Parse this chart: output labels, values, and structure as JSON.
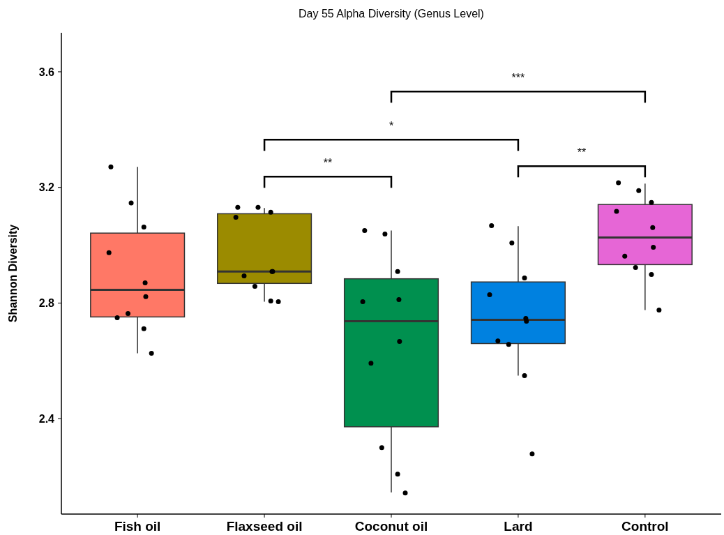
{
  "chart_data": {
    "type": "box",
    "title": "Day 55 Alpha Diversity (Genus Level)",
    "ylabel": "Shannon Diversity",
    "categories": [
      "Fish oil",
      "Flaxseed oil",
      "Coconut oil",
      "Lard",
      "Control"
    ],
    "colors": [
      "#ff7866",
      "#9b8b00",
      "#00904f",
      "#0081e0",
      "#e666d6"
    ],
    "boxes": [
      {
        "low": 2.626,
        "q1": 2.752,
        "median": 2.846,
        "q3": 3.042,
        "high": 3.271
      },
      {
        "low": 2.805,
        "q1": 2.868,
        "median": 2.909,
        "q3": 3.109,
        "high": 3.129
      },
      {
        "low": 2.145,
        "q1": 2.372,
        "median": 2.737,
        "q3": 2.884,
        "high": 3.051
      },
      {
        "low": 2.549,
        "q1": 2.66,
        "median": 2.742,
        "q3": 2.873,
        "high": 3.066
      },
      {
        "low": 2.776,
        "q1": 2.933,
        "median": 3.027,
        "q3": 3.141,
        "high": 3.213
      }
    ],
    "series": [
      {
        "type": "scatter",
        "color": "#000000",
        "x": [
          "Fish oil",
          "Fish oil",
          "Fish oil",
          "Fish oil",
          "Fish oil",
          "Fish oil",
          "Fish oil",
          "Fish oil",
          "Fish oil",
          "Fish oil",
          "Flaxseed oil",
          "Flaxseed oil",
          "Flaxseed oil",
          "Flaxseed oil",
          "Flaxseed oil",
          "Flaxseed oil",
          "Flaxseed oil",
          "Flaxseed oil",
          "Flaxseed oil",
          "Flaxseed oil",
          "Coconut oil",
          "Coconut oil",
          "Coconut oil",
          "Coconut oil",
          "Coconut oil",
          "Coconut oil",
          "Coconut oil",
          "Coconut oil",
          "Coconut oil",
          "Coconut oil",
          "Lard",
          "Lard",
          "Lard",
          "Lard",
          "Lard",
          "Lard",
          "Lard",
          "Lard",
          "Lard",
          "Lard",
          "Control",
          "Control",
          "Control",
          "Control",
          "Control",
          "Control",
          "Control",
          "Control",
          "Control",
          "Control"
        ],
        "values": [
          3.271,
          3.146,
          3.063,
          2.974,
          2.87,
          2.822,
          2.749,
          2.764,
          2.711,
          2.626,
          3.131,
          3.131,
          3.114,
          3.097,
          2.909,
          2.909,
          2.894,
          2.858,
          2.807,
          2.805,
          3.051,
          3.039,
          2.909,
          2.805,
          2.812,
          2.667,
          2.592,
          2.3,
          2.208,
          2.143,
          3.068,
          3.008,
          2.887,
          2.829,
          2.747,
          2.737,
          2.669,
          2.657,
          2.549,
          2.278,
          3.216,
          3.189,
          3.148,
          3.117,
          3.061,
          2.993,
          2.962,
          2.923,
          2.899,
          2.776
        ]
      }
    ],
    "annotations": [
      "***",
      "*",
      "**",
      "**"
    ],
    "ylim": [
      2.07,
      3.735
    ],
    "yticks": [
      2.4,
      2.8,
      3.2,
      3.6
    ],
    "grid": false
  }
}
